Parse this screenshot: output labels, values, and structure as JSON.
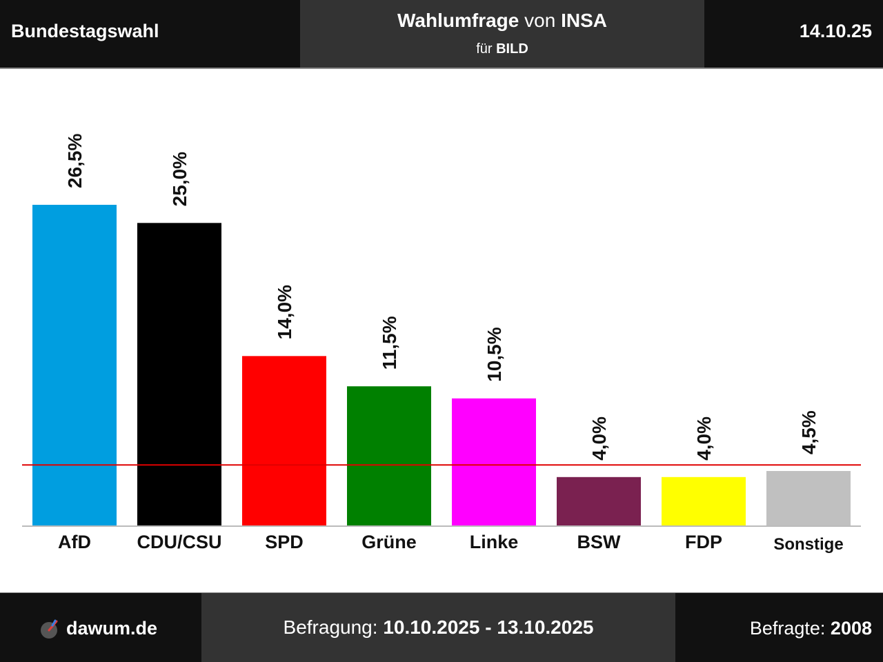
{
  "header": {
    "election": "Bundestagswahl",
    "title_bold1": "Wahlumfrage",
    "title_mid": "von",
    "title_bold2": "INSA",
    "sub_prefix": "für",
    "sub_client": "BILD",
    "date": "14.10.25"
  },
  "footer": {
    "brand": "dawum.de",
    "survey_label": "Befragung:",
    "survey_period": "10.10.2025 - 13.10.2025",
    "respondents_label": "Befragte:",
    "respondents_value": "2008"
  },
  "chart_data": {
    "type": "bar",
    "categories": [
      "AfD",
      "CDU/CSU",
      "SPD",
      "Grüne",
      "Linke",
      "BSW",
      "FDP",
      "Sonstige"
    ],
    "values": [
      26.5,
      25.0,
      14.0,
      11.5,
      10.5,
      4.0,
      4.0,
      4.5
    ],
    "value_labels": [
      "26,5%",
      "25,0%",
      "14,0%",
      "11,5%",
      "10,5%",
      "4,0%",
      "4,0%",
      "4,5%"
    ],
    "colors": [
      "#009ee0",
      "#000000",
      "#ff0000",
      "#008000",
      "#ff00ff",
      "#7a2150",
      "#ffff00",
      "#c0c0c0"
    ],
    "threshold": 5,
    "threshold_color": "#e00000",
    "ylim": [
      0,
      26.5
    ],
    "grid": false,
    "legend": "none"
  }
}
